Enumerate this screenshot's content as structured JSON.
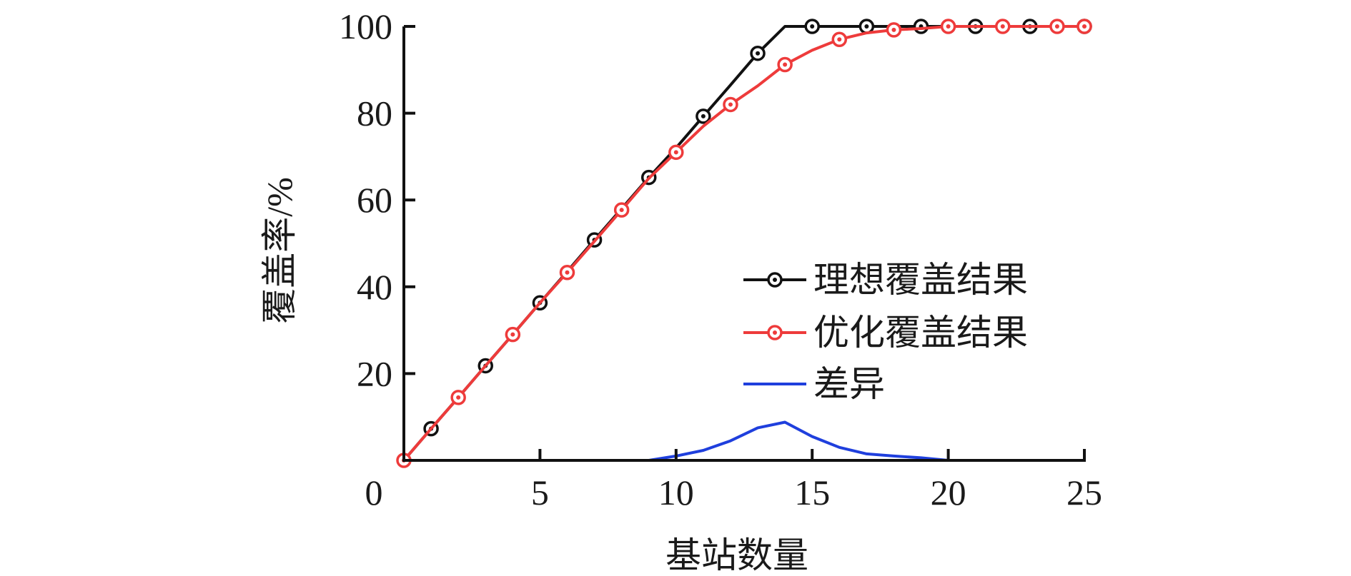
{
  "chart_data": {
    "type": "line",
    "title": "",
    "xlabel": "基站数量",
    "ylabel": "覆盖率/%",
    "xlim": [
      0,
      25
    ],
    "ylim": [
      0,
      100
    ],
    "xticks": [
      "0",
      "5",
      "10",
      "15",
      "20",
      "25"
    ],
    "yticks": [
      "20",
      "40",
      "60",
      "80",
      "100"
    ],
    "grid": false,
    "legend_position": "center-right",
    "series": [
      {
        "name": "理想覆盖结果",
        "color": "#111111",
        "marker": "circle-dot",
        "x": [
          0,
          1,
          2,
          3,
          4,
          5,
          6,
          7,
          8,
          9,
          10,
          11,
          12,
          13,
          14,
          15,
          16,
          17,
          18,
          19,
          20,
          21,
          22,
          23,
          24,
          25
        ],
        "y": [
          0,
          7.3,
          14.5,
          21.8,
          29,
          36.3,
          43.5,
          50.8,
          58,
          65.2,
          72,
          79.3,
          86.5,
          93.8,
          100,
          100,
          100,
          100,
          100,
          100,
          100,
          100,
          100,
          100,
          100,
          100
        ],
        "marker_x": [
          1,
          3,
          5,
          7,
          9,
          11,
          13,
          15,
          17,
          19,
          21,
          23,
          25
        ]
      },
      {
        "name": "优化覆盖结果",
        "color": "#ee3b3b",
        "marker": "circle-dot",
        "x": [
          0,
          1,
          2,
          3,
          4,
          5,
          6,
          7,
          8,
          9,
          10,
          11,
          12,
          13,
          14,
          15,
          16,
          17,
          18,
          19,
          20,
          21,
          22,
          23,
          24,
          25
        ],
        "y": [
          0,
          7.3,
          14.5,
          21.8,
          29,
          36.3,
          43.3,
          50.5,
          57.7,
          65,
          71,
          77,
          82,
          86.3,
          91.2,
          94.5,
          97,
          98.5,
          99.2,
          99.5,
          100,
          100,
          100,
          100,
          100,
          100
        ],
        "marker_x": [
          0,
          2,
          4,
          6,
          8,
          10,
          12,
          14,
          16,
          18,
          20,
          22,
          24,
          25
        ]
      },
      {
        "name": "差异",
        "color": "#1f3fdd",
        "marker": "none",
        "x": [
          1,
          2,
          3,
          4,
          5,
          6,
          7,
          8,
          9,
          10,
          11,
          12,
          13,
          14,
          15,
          16,
          17,
          18,
          19,
          20,
          21,
          22,
          23,
          24,
          25
        ],
        "y": [
          0,
          0,
          0,
          0,
          0,
          0,
          0,
          0,
          0,
          1,
          2.3,
          4.5,
          7.5,
          8.8,
          5.5,
          3,
          1.5,
          1,
          0.6,
          0,
          0,
          0,
          0,
          0,
          0
        ]
      }
    ]
  }
}
